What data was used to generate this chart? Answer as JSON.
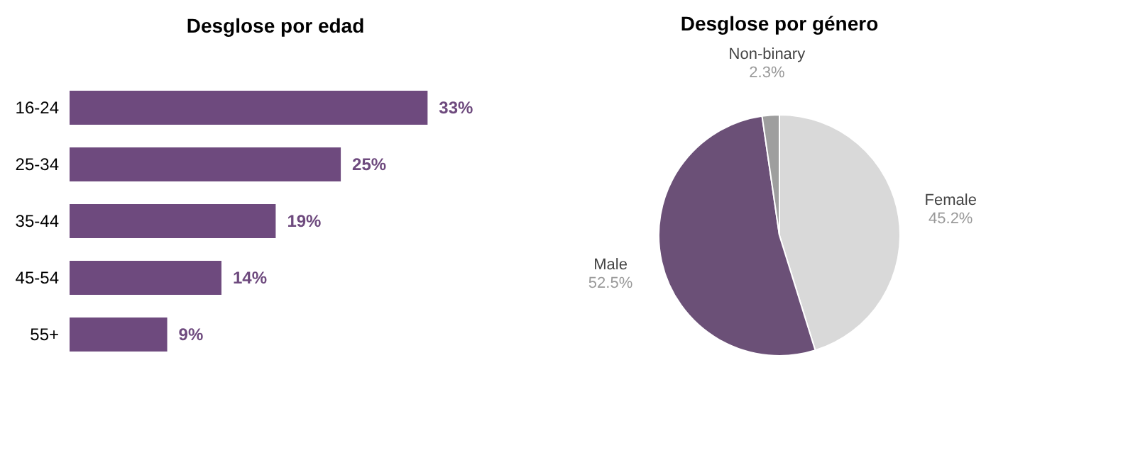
{
  "chart_data": [
    {
      "type": "bar",
      "title": "Desglose por edad",
      "orientation": "horizontal",
      "categories": [
        "16-24",
        "25-34",
        "35-44",
        "45-54",
        "55+"
      ],
      "values": [
        33,
        25,
        19,
        14,
        9
      ],
      "value_labels": [
        "33%",
        "25%",
        "19%",
        "14%",
        "9%"
      ],
      "color": "#6e4a7e",
      "grid": false
    },
    {
      "type": "pie",
      "title": "Desglose por género",
      "categories": [
        "Female",
        "Male",
        "Non-binary"
      ],
      "values": [
        45.2,
        52.5,
        2.3
      ],
      "value_labels": [
        "45.2%",
        "52.5%",
        "2.3%"
      ],
      "colors": [
        "#d9d9d9",
        "#6b5077",
        "#9e9e9e"
      ],
      "legend": false
    }
  ]
}
